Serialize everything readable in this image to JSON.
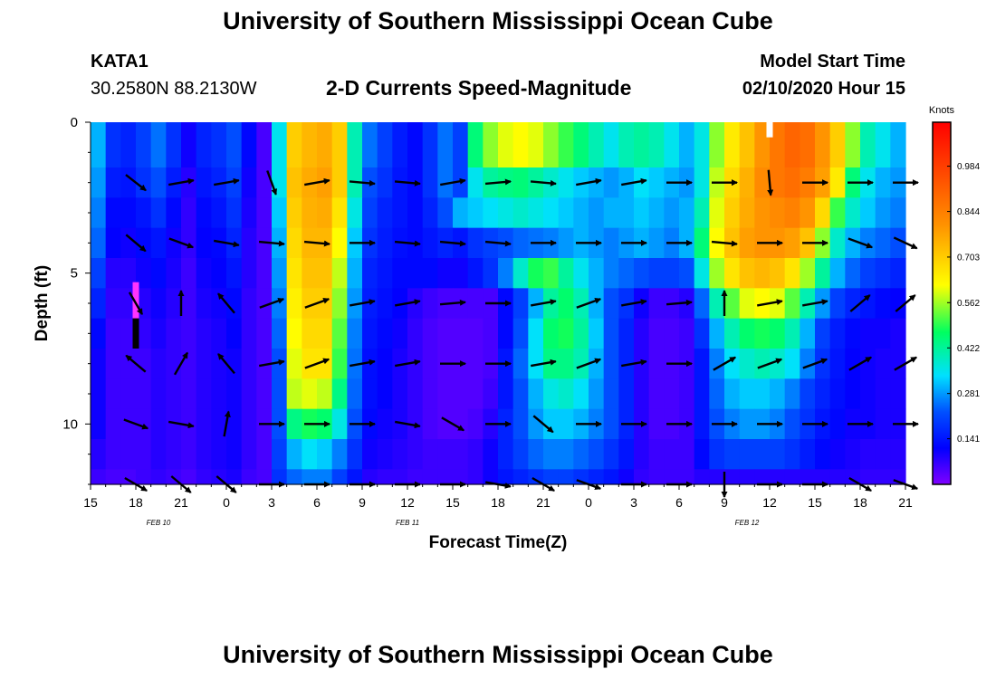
{
  "header": {
    "title": "University of Southern Mississippi Ocean Cube",
    "station_id": "KATA1",
    "coordinates": "30.2580N 88.2130W",
    "subtitle": "2-D Currents Speed-Magnitude",
    "model_label": "Model Start Time",
    "model_start": "02/10/2020 Hour 15"
  },
  "footer": {
    "title": "University of Southern Mississippi Ocean Cube"
  },
  "chart_data": {
    "type": "heatmap",
    "xlabel": "Forecast Time(Z)",
    "ylabel": "Depth (ft)",
    "colorbar_label": "Knots",
    "colorbar_ticks": [
      "0.984",
      "0.844",
      "0.703",
      "0.562",
      "0.422",
      "0.281",
      "0.141"
    ],
    "colorbar_range": [
      0,
      1.12
    ],
    "x_tick_labels": [
      "15",
      "18",
      "21",
      "0",
      "3",
      "6",
      "9",
      "12",
      "15",
      "18",
      "21",
      "0",
      "3",
      "6",
      "9",
      "12",
      "15",
      "18",
      "21"
    ],
    "x_forecast_hours": [
      0,
      3,
      6,
      9,
      12,
      15,
      18,
      21,
      24,
      27,
      30,
      33,
      36,
      39,
      42,
      45,
      48,
      51,
      54
    ],
    "date_labels": [
      {
        "label": "FEB 10",
        "hour": 4.5
      },
      {
        "label": "FEB 11",
        "hour": 21
      },
      {
        "label": "FEB 12",
        "hour": 43.5
      }
    ],
    "y_tick_labels": [
      "0",
      "5",
      "10"
    ],
    "y_ticks": [
      0,
      5,
      10
    ],
    "ylim": [
      0,
      12
    ],
    "xlim": [
      0,
      54
    ],
    "hour_step": 1,
    "depth_bins": [
      0,
      1.5,
      2.5,
      3.5,
      4.5,
      5.5,
      6.5,
      7.5,
      8.5,
      9.5,
      10.5,
      11.5,
      12
    ],
    "speed": [
      [
        0.3,
        0.18,
        0.16,
        0.2,
        0.25,
        0.18,
        0.1,
        0.16,
        0.18,
        0.22,
        0.12,
        0.05,
        0.35,
        0.7,
        0.74,
        0.76,
        0.7,
        0.4,
        0.25,
        0.2,
        0.15,
        0.12,
        0.18,
        0.25,
        0.2,
        0.45,
        0.55,
        0.6,
        0.62,
        0.6,
        0.55,
        0.5,
        0.45,
        0.4,
        0.35,
        0.4,
        0.42,
        0.4,
        0.35,
        0.3,
        0.36,
        0.55,
        0.65,
        0.72,
        0.8,
        0.86,
        0.9,
        0.88,
        0.8,
        0.7,
        0.55,
        0.4,
        0.35,
        0.3
      ],
      [
        0.28,
        0.15,
        0.14,
        0.18,
        0.22,
        0.15,
        0.08,
        0.14,
        0.16,
        0.2,
        0.1,
        0.05,
        0.35,
        0.72,
        0.76,
        0.78,
        0.7,
        0.4,
        0.22,
        0.18,
        0.14,
        0.12,
        0.18,
        0.25,
        0.2,
        0.35,
        0.42,
        0.44,
        0.45,
        0.42,
        0.38,
        0.35,
        0.32,
        0.3,
        0.28,
        0.3,
        0.34,
        0.32,
        0.3,
        0.28,
        0.36,
        0.58,
        0.68,
        0.75,
        0.82,
        0.86,
        0.88,
        0.85,
        0.78,
        0.65,
        0.45,
        0.35,
        0.3,
        0.28
      ],
      [
        0.26,
        0.12,
        0.12,
        0.14,
        0.18,
        0.12,
        0.07,
        0.12,
        0.14,
        0.18,
        0.09,
        0.05,
        0.32,
        0.7,
        0.75,
        0.76,
        0.66,
        0.36,
        0.2,
        0.16,
        0.14,
        0.12,
        0.16,
        0.22,
        0.3,
        0.32,
        0.34,
        0.36,
        0.38,
        0.36,
        0.34,
        0.32,
        0.3,
        0.28,
        0.3,
        0.3,
        0.32,
        0.3,
        0.28,
        0.3,
        0.4,
        0.6,
        0.7,
        0.76,
        0.8,
        0.82,
        0.84,
        0.8,
        0.68,
        0.5,
        0.38,
        0.32,
        0.28,
        0.26
      ],
      [
        0.24,
        0.11,
        0.1,
        0.12,
        0.14,
        0.1,
        0.07,
        0.11,
        0.12,
        0.16,
        0.08,
        0.05,
        0.3,
        0.68,
        0.74,
        0.74,
        0.62,
        0.32,
        0.18,
        0.15,
        0.13,
        0.12,
        0.14,
        0.16,
        0.14,
        0.18,
        0.2,
        0.22,
        0.24,
        0.25,
        0.26,
        0.28,
        0.3,
        0.28,
        0.26,
        0.28,
        0.3,
        0.28,
        0.26,
        0.3,
        0.45,
        0.62,
        0.72,
        0.78,
        0.8,
        0.8,
        0.78,
        0.72,
        0.55,
        0.38,
        0.3,
        0.26,
        0.24,
        0.22
      ],
      [
        0.2,
        0.08,
        0.08,
        0.1,
        0.12,
        0.09,
        0.06,
        0.1,
        0.11,
        0.14,
        0.08,
        0.05,
        0.28,
        0.66,
        0.72,
        0.72,
        0.58,
        0.3,
        0.16,
        0.14,
        0.12,
        0.12,
        0.12,
        0.1,
        0.1,
        0.14,
        0.18,
        0.26,
        0.38,
        0.48,
        0.5,
        0.42,
        0.35,
        0.3,
        0.26,
        0.24,
        0.22,
        0.2,
        0.2,
        0.22,
        0.36,
        0.56,
        0.66,
        0.72,
        0.74,
        0.72,
        0.66,
        0.56,
        0.42,
        0.3,
        0.24,
        0.2,
        0.18,
        0.16
      ],
      [
        0.16,
        0.07,
        0.07,
        0.08,
        0.1,
        0.08,
        0.06,
        0.09,
        0.1,
        0.12,
        0.07,
        0.05,
        0.26,
        0.64,
        0.7,
        0.7,
        0.55,
        0.28,
        0.15,
        0.13,
        0.11,
        0.08,
        0.06,
        0.05,
        0.05,
        0.05,
        0.05,
        0.12,
        0.2,
        0.3,
        0.42,
        0.46,
        0.4,
        0.3,
        0.22,
        0.18,
        0.1,
        0.06,
        0.06,
        0.08,
        0.24,
        0.4,
        0.52,
        0.6,
        0.62,
        0.6,
        0.52,
        0.4,
        0.28,
        0.2,
        0.16,
        0.14,
        0.12,
        0.11
      ],
      [
        0.12,
        0.06,
        0.06,
        0.07,
        0.09,
        0.07,
        0.06,
        0.08,
        0.09,
        0.11,
        0.07,
        0.05,
        0.24,
        0.62,
        0.68,
        0.68,
        0.52,
        0.26,
        0.14,
        0.12,
        0.1,
        0.07,
        0.05,
        0.04,
        0.04,
        0.04,
        0.05,
        0.12,
        0.22,
        0.34,
        0.46,
        0.48,
        0.42,
        0.32,
        0.22,
        0.16,
        0.08,
        0.05,
        0.05,
        0.06,
        0.18,
        0.3,
        0.4,
        0.46,
        0.48,
        0.46,
        0.4,
        0.3,
        0.2,
        0.15,
        0.12,
        0.1,
        0.1,
        0.09
      ],
      [
        0.1,
        0.06,
        0.06,
        0.06,
        0.08,
        0.07,
        0.06,
        0.08,
        0.09,
        0.1,
        0.07,
        0.05,
        0.22,
        0.6,
        0.66,
        0.66,
        0.5,
        0.25,
        0.13,
        0.11,
        0.09,
        0.07,
        0.05,
        0.04,
        0.04,
        0.04,
        0.05,
        0.14,
        0.24,
        0.34,
        0.44,
        0.44,
        0.4,
        0.3,
        0.22,
        0.16,
        0.08,
        0.05,
        0.05,
        0.06,
        0.14,
        0.26,
        0.34,
        0.38,
        0.4,
        0.38,
        0.34,
        0.26,
        0.18,
        0.14,
        0.11,
        0.1,
        0.09,
        0.09
      ],
      [
        0.1,
        0.06,
        0.06,
        0.06,
        0.08,
        0.07,
        0.06,
        0.08,
        0.09,
        0.1,
        0.07,
        0.05,
        0.22,
        0.58,
        0.6,
        0.58,
        0.44,
        0.24,
        0.13,
        0.11,
        0.09,
        0.07,
        0.05,
        0.04,
        0.04,
        0.04,
        0.06,
        0.14,
        0.22,
        0.3,
        0.36,
        0.38,
        0.34,
        0.28,
        0.22,
        0.16,
        0.08,
        0.05,
        0.05,
        0.06,
        0.14,
        0.24,
        0.3,
        0.32,
        0.32,
        0.3,
        0.26,
        0.2,
        0.16,
        0.13,
        0.11,
        0.1,
        0.09,
        0.09
      ],
      [
        0.1,
        0.06,
        0.06,
        0.06,
        0.08,
        0.07,
        0.06,
        0.08,
        0.09,
        0.1,
        0.07,
        0.05,
        0.22,
        0.44,
        0.48,
        0.46,
        0.36,
        0.22,
        0.12,
        0.1,
        0.09,
        0.07,
        0.05,
        0.04,
        0.04,
        0.05,
        0.08,
        0.16,
        0.22,
        0.28,
        0.32,
        0.32,
        0.3,
        0.26,
        0.22,
        0.16,
        0.08,
        0.05,
        0.05,
        0.06,
        0.14,
        0.22,
        0.26,
        0.28,
        0.28,
        0.26,
        0.22,
        0.18,
        0.14,
        0.12,
        0.1,
        0.1,
        0.09,
        0.09
      ],
      [
        0.08,
        0.06,
        0.06,
        0.06,
        0.08,
        0.07,
        0.06,
        0.08,
        0.09,
        0.1,
        0.07,
        0.05,
        0.2,
        0.3,
        0.34,
        0.32,
        0.26,
        0.18,
        0.1,
        0.09,
        0.08,
        0.07,
        0.06,
        0.06,
        0.06,
        0.07,
        0.1,
        0.16,
        0.2,
        0.24,
        0.26,
        0.26,
        0.24,
        0.22,
        0.18,
        0.14,
        0.08,
        0.06,
        0.06,
        0.06,
        0.12,
        0.18,
        0.2,
        0.2,
        0.2,
        0.2,
        0.18,
        0.15,
        0.12,
        0.1,
        0.09,
        0.08,
        0.08,
        0.08
      ],
      [
        0.06,
        0.05,
        0.05,
        0.06,
        0.07,
        0.06,
        0.05,
        0.07,
        0.08,
        0.09,
        0.06,
        0.05,
        0.18,
        0.24,
        0.26,
        0.26,
        0.2,
        0.14,
        0.08,
        0.07,
        0.07,
        0.06,
        0.06,
        0.06,
        0.06,
        0.07,
        0.1,
        0.14,
        0.16,
        0.18,
        0.2,
        0.2,
        0.18,
        0.16,
        0.14,
        0.1,
        0.07,
        0.06,
        0.06,
        0.06,
        0.08,
        0.08,
        0.08,
        0.08,
        0.08,
        0.08,
        0.08,
        0.08,
        0.08,
        0.08,
        0.08,
        0.07,
        0.07,
        0.07
      ]
    ],
    "vector_depths": [
      2,
      4,
      6,
      8,
      10,
      12
    ],
    "vector_hours": [
      3,
      6,
      9,
      12,
      15,
      18,
      21,
      24,
      27,
      30,
      33,
      36,
      39,
      42,
      45,
      48,
      51,
      54
    ],
    "direction_deg": [
      [
        -38,
        10,
        10,
        -70,
        10,
        -5,
        -5,
        10,
        5,
        -5,
        10,
        10,
        0,
        0,
        -85,
        0,
        0,
        0
      ],
      [
        -40,
        -20,
        -10,
        -5,
        -5,
        0,
        -5,
        -5,
        -5,
        0,
        0,
        0,
        0,
        -5,
        0,
        0,
        -20,
        -25
      ],
      [
        -60,
        90,
        130,
        20,
        20,
        10,
        10,
        5,
        0,
        10,
        20,
        10,
        5,
        90,
        10,
        10,
        40,
        40
      ],
      [
        140,
        60,
        130,
        10,
        20,
        10,
        10,
        0,
        0,
        10,
        20,
        10,
        0,
        30,
        20,
        20,
        30,
        30
      ],
      [
        -20,
        -10,
        80,
        0,
        0,
        0,
        -10,
        -30,
        0,
        -40,
        0,
        0,
        0,
        0,
        0,
        0,
        0,
        0
      ],
      [
        -30,
        -40,
        -40,
        0,
        0,
        0,
        0,
        0,
        -10,
        -30,
        -20,
        0,
        0,
        -90,
        0,
        0,
        -30,
        -20
      ]
    ],
    "boundary_cells": [
      {
        "hour": 45,
        "depth": 0,
        "depth_end": 0.5,
        "color": "#ffffff"
      },
      {
        "hour": 3,
        "depth": 5.3,
        "depth_end": 6.5,
        "color": "#ff33ff"
      },
      {
        "hour": 3,
        "depth": 6.5,
        "depth_end": 7.5,
        "color": "#000000"
      }
    ]
  }
}
